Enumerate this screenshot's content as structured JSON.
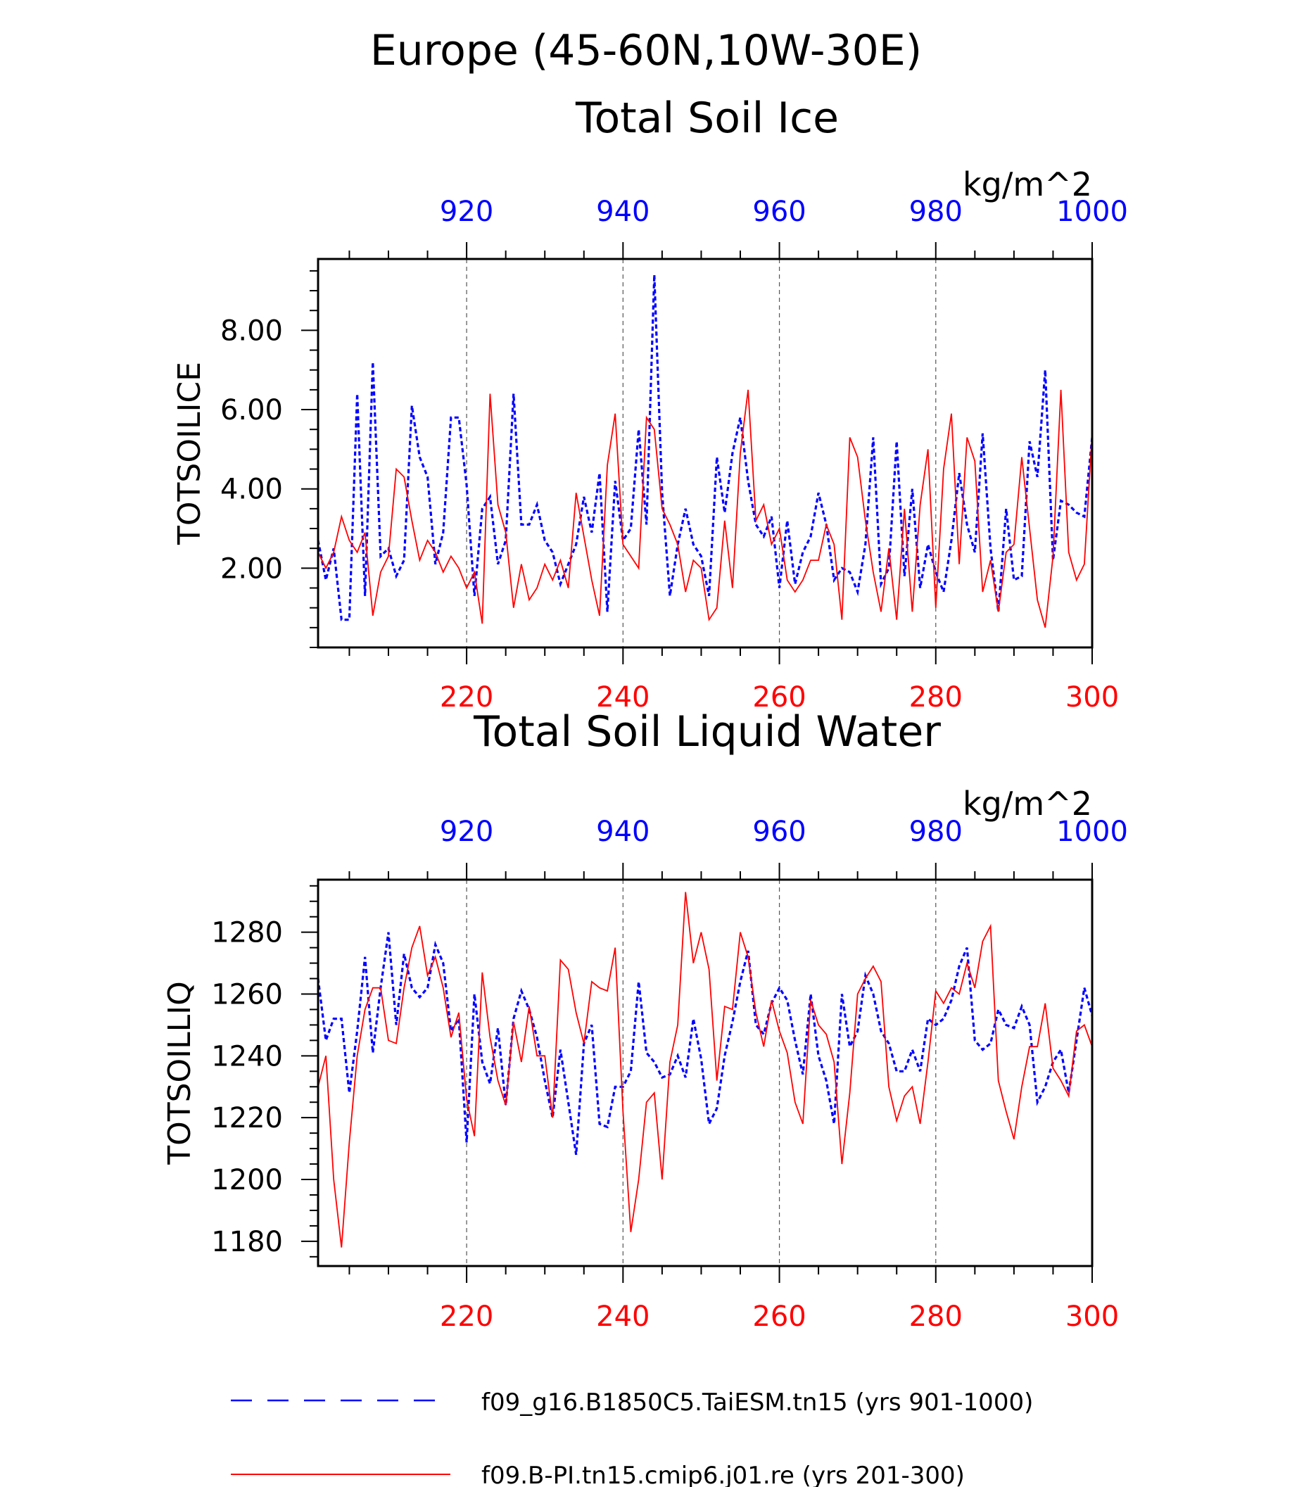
{
  "header": {
    "title": "Europe (45-60N,10W-30E)"
  },
  "legend": {
    "items": [
      {
        "label": "f09_g16.B1850C5.TaiESM.tn15 (yrs 901-1000)",
        "color": "#0000ff",
        "style": "dashed"
      },
      {
        "label": "f09.B-PI.tn15.cmip6.j01.re (yrs 201-300)",
        "color": "#ff0000",
        "style": "solid"
      }
    ]
  },
  "chart_data": [
    {
      "type": "line",
      "title": "Total Soil Ice",
      "ylabel": "TOTSOILICE",
      "units": "kg/m^2",
      "grid": "vertical dashed",
      "ylim": [
        0,
        9.8
      ],
      "yticks": [
        2,
        4,
        6,
        8
      ],
      "ytick_labels": [
        "2.00",
        "4.00",
        "6.00",
        "8.00"
      ],
      "y_minor": 0.5,
      "x_bottom": {
        "range": [
          201,
          300
        ],
        "ticks": [
          220,
          240,
          260,
          280,
          300
        ],
        "labels": [
          "220",
          "240",
          "260",
          "280",
          "300"
        ],
        "color": "#ff0000"
      },
      "x_top": {
        "range": [
          901,
          1000
        ],
        "ticks": [
          920,
          940,
          960,
          980,
          1000
        ],
        "labels": [
          "920",
          "940",
          "960",
          "980",
          "1000"
        ],
        "color": "#0000ff"
      },
      "series": [
        {
          "name": "f09_g16.B1850C5.TaiESM.tn15 (yrs 901-1000)",
          "axis": "top",
          "x_start": 901,
          "values": [
            2.7,
            1.7,
            2.5,
            0.7,
            0.7,
            6.4,
            1.3,
            7.2,
            2.3,
            2.5,
            1.8,
            2.2,
            6.1,
            4.8,
            4.3,
            2.1,
            2.9,
            5.8,
            5.8,
            4.1,
            1.3,
            3.5,
            3.8,
            2.1,
            2.7,
            6.4,
            3.1,
            3.1,
            3.6,
            2.7,
            2.4,
            1.6,
            2.1,
            2.6,
            3.8,
            2.9,
            4.4,
            0.9,
            4.2,
            2.7,
            3.0,
            5.5,
            3.1,
            9.4,
            3.9,
            1.3,
            2.6,
            3.5,
            2.6,
            2.3,
            1.3,
            4.8,
            3.4,
            4.9,
            5.8,
            4.2,
            3.1,
            2.8,
            3.3,
            1.5,
            3.2,
            1.6,
            2.4,
            2.8,
            3.9,
            3.1,
            1.7,
            2.0,
            1.9,
            1.4,
            2.6,
            5.3,
            1.6,
            2.0,
            5.2,
            1.8,
            4.0,
            1.5,
            2.6,
            1.9,
            1.4,
            2.7,
            4.4,
            3.1,
            2.4,
            5.4,
            2.5,
            0.9,
            3.5,
            1.7,
            1.8,
            5.2,
            4.3,
            7.0,
            2.2,
            3.7,
            3.6,
            3.4,
            3.3,
            5.3
          ]
        },
        {
          "name": "f09.B-PI.tn15.cmip6.j01.re (yrs 201-300)",
          "axis": "bottom",
          "x_start": 201,
          "values": [
            2.4,
            2.0,
            2.4,
            3.3,
            2.7,
            2.4,
            2.9,
            0.8,
            1.9,
            2.3,
            4.5,
            4.3,
            3.2,
            2.2,
            2.7,
            2.4,
            1.9,
            2.3,
            2.0,
            1.5,
            1.9,
            0.6,
            6.4,
            3.6,
            2.9,
            1.0,
            2.1,
            1.2,
            1.5,
            2.1,
            1.7,
            2.2,
            1.5,
            3.9,
            2.8,
            1.7,
            0.8,
            4.6,
            5.9,
            2.6,
            2.3,
            2.0,
            5.8,
            5.5,
            3.5,
            3.1,
            2.6,
            1.4,
            2.2,
            2.0,
            0.7,
            1.0,
            3.2,
            1.5,
            4.9,
            6.5,
            3.2,
            3.6,
            2.6,
            3.0,
            1.7,
            1.4,
            1.7,
            2.2,
            2.2,
            3.1,
            2.6,
            0.7,
            5.3,
            4.8,
            3.2,
            1.9,
            0.9,
            2.5,
            0.7,
            3.5,
            0.9,
            3.6,
            5.0,
            1.0,
            4.5,
            5.9,
            2.1,
            5.3,
            4.7,
            1.4,
            2.2,
            0.9,
            2.4,
            2.6,
            4.8,
            3.0,
            1.2,
            0.5,
            2.3,
            6.5,
            2.4,
            1.7,
            2.1,
            5.4
          ]
        }
      ]
    },
    {
      "type": "line",
      "title": "Total Soil Liquid Water",
      "ylabel": "TOTSOILLIQ",
      "units": "kg/m^2",
      "grid": "vertical dashed",
      "ylim": [
        1172,
        1297
      ],
      "yticks": [
        1180,
        1200,
        1220,
        1240,
        1260,
        1280
      ],
      "ytick_labels": [
        "1180",
        "1200",
        "1220",
        "1240",
        "1260",
        "1280"
      ],
      "y_minor": 5,
      "x_bottom": {
        "range": [
          201,
          300
        ],
        "ticks": [
          220,
          240,
          260,
          280,
          300
        ],
        "labels": [
          "220",
          "240",
          "260",
          "280",
          "300"
        ],
        "color": "#ff0000"
      },
      "x_top": {
        "range": [
          901,
          1000
        ],
        "ticks": [
          920,
          940,
          960,
          980,
          1000
        ],
        "labels": [
          "920",
          "940",
          "960",
          "980",
          "1000"
        ],
        "color": "#0000ff"
      },
      "series": [
        {
          "name": "f09_g16.B1850C5.TaiESM.tn15 (yrs 901-1000)",
          "axis": "top",
          "x_start": 901,
          "values": [
            1265,
            1245,
            1252,
            1252,
            1228,
            1248,
            1272,
            1241,
            1262,
            1280,
            1250,
            1273,
            1262,
            1259,
            1262,
            1276,
            1270,
            1248,
            1252,
            1212,
            1260,
            1238,
            1231,
            1249,
            1224,
            1252,
            1261,
            1255,
            1246,
            1232,
            1220,
            1242,
            1225,
            1208,
            1244,
            1250,
            1218,
            1217,
            1230,
            1230,
            1235,
            1264,
            1241,
            1238,
            1233,
            1234,
            1240,
            1233,
            1252,
            1239,
            1218,
            1223,
            1240,
            1251,
            1264,
            1274,
            1250,
            1247,
            1257,
            1262,
            1258,
            1245,
            1234,
            1260,
            1240,
            1232,
            1218,
            1260,
            1243,
            1248,
            1266,
            1260,
            1248,
            1244,
            1235,
            1235,
            1242,
            1235,
            1252,
            1250,
            1252,
            1258,
            1269,
            1275,
            1245,
            1242,
            1244,
            1255,
            1250,
            1249,
            1256,
            1250,
            1225,
            1230,
            1238,
            1242,
            1228,
            1245,
            1262,
            1253
          ]
        },
        {
          "name": "f09.B-PI.tn15.cmip6.j01.re (yrs 201-300)",
          "axis": "bottom",
          "x_start": 201,
          "values": [
            1230,
            1240,
            1200,
            1178,
            1212,
            1240,
            1255,
            1262,
            1262,
            1245,
            1244,
            1262,
            1275,
            1282,
            1266,
            1272,
            1262,
            1246,
            1254,
            1226,
            1214,
            1267,
            1246,
            1232,
            1224,
            1251,
            1238,
            1256,
            1240,
            1240,
            1220,
            1271,
            1268,
            1254,
            1244,
            1264,
            1262,
            1261,
            1275,
            1222,
            1183,
            1200,
            1225,
            1228,
            1200,
            1238,
            1250,
            1293,
            1270,
            1280,
            1268,
            1232,
            1256,
            1255,
            1280,
            1272,
            1254,
            1243,
            1258,
            1248,
            1241,
            1225,
            1218,
            1258,
            1250,
            1247,
            1238,
            1205,
            1228,
            1260,
            1265,
            1269,
            1264,
            1230,
            1219,
            1227,
            1230,
            1218,
            1238,
            1261,
            1257,
            1262,
            1260,
            1270,
            1262,
            1277,
            1282,
            1232,
            1222,
            1213,
            1230,
            1243,
            1243,
            1257,
            1236,
            1232,
            1227,
            1248,
            1250,
            1243
          ]
        }
      ]
    }
  ]
}
